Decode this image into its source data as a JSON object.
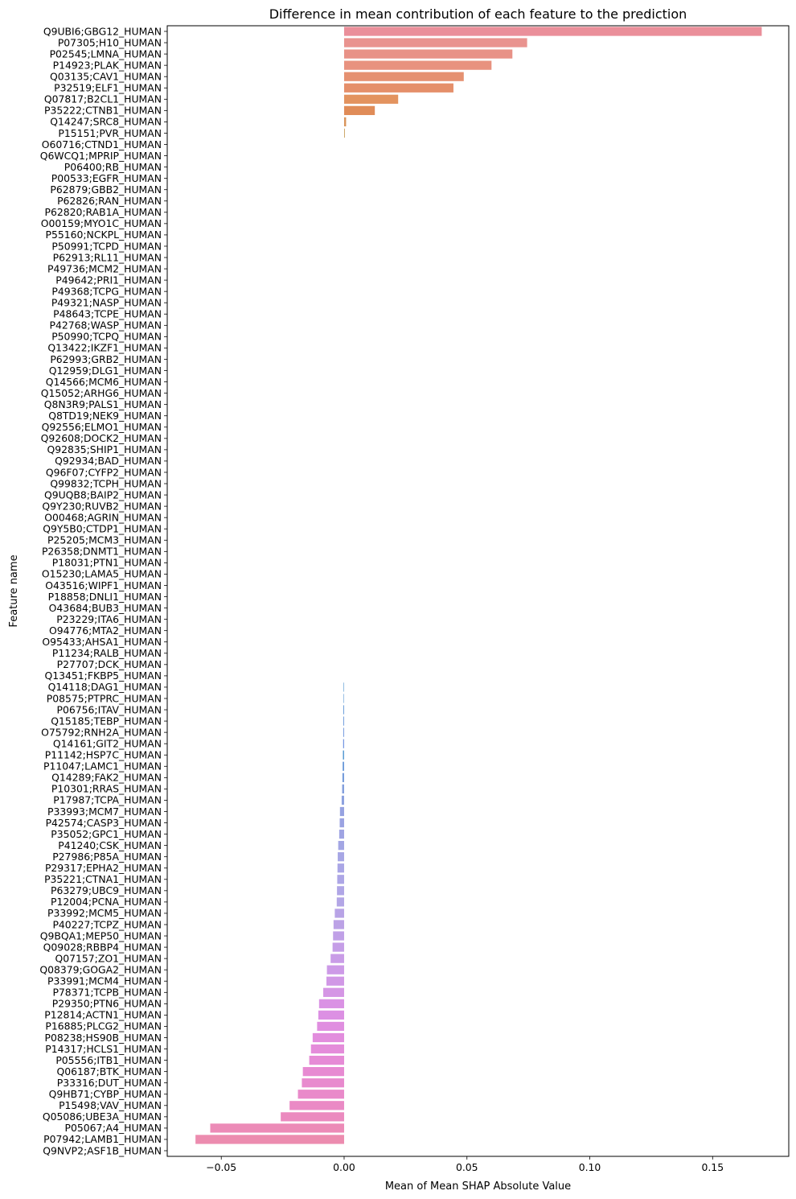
{
  "chart_data": {
    "type": "bar",
    "orientation": "horizontal",
    "title": "Difference in mean contribution of each feature to the prediction",
    "xlabel": "Mean of Mean SHAP Absolute Value",
    "ylabel": "Feature name",
    "xlim": [
      -0.072,
      0.181
    ],
    "xticks": [
      -0.05,
      0.0,
      0.05,
      0.1,
      0.15
    ],
    "xtick_labels": [
      "−0.05",
      "0.00",
      "0.05",
      "0.10",
      "0.15"
    ],
    "grid": false,
    "legend": "none",
    "categories": [
      "Q9UBI6;GBG12_HUMAN",
      "P07305;H10_HUMAN",
      "P02545;LMNA_HUMAN",
      "P14923;PLAK_HUMAN",
      "Q03135;CAV1_HUMAN",
      "P32519;ELF1_HUMAN",
      "Q07817;B2CL1_HUMAN",
      "P35222;CTNB1_HUMAN",
      "Q14247;SRC8_HUMAN",
      "P15151;PVR_HUMAN",
      "O60716;CTND1_HUMAN",
      "Q6WCQ1;MPRIP_HUMAN",
      "P06400;RB_HUMAN",
      "P00533;EGFR_HUMAN",
      "P62879;GBB2_HUMAN",
      "P62826;RAN_HUMAN",
      "P62820;RAB1A_HUMAN",
      "O00159;MYO1C_HUMAN",
      "P55160;NCKPL_HUMAN",
      "P50991;TCPD_HUMAN",
      "P62913;RL11_HUMAN",
      "P49736;MCM2_HUMAN",
      "P49642;PRI1_HUMAN",
      "P49368;TCPG_HUMAN",
      "P49321;NASP_HUMAN",
      "P48643;TCPE_HUMAN",
      "P42768;WASP_HUMAN",
      "P50990;TCPQ_HUMAN",
      "Q13422;IKZF1_HUMAN",
      "P62993;GRB2_HUMAN",
      "Q12959;DLG1_HUMAN",
      "Q14566;MCM6_HUMAN",
      "Q15052;ARHG6_HUMAN",
      "Q8N3R9;PALS1_HUMAN",
      "Q8TD19;NEK9_HUMAN",
      "Q92556;ELMO1_HUMAN",
      "Q92608;DOCK2_HUMAN",
      "Q92835;SHIP1_HUMAN",
      "Q92934;BAD_HUMAN",
      "Q96F07;CYFP2_HUMAN",
      "Q99832;TCPH_HUMAN",
      "Q9UQB8;BAIP2_HUMAN",
      "Q9Y230;RUVB2_HUMAN",
      "O00468;AGRIN_HUMAN",
      "Q9Y5B0;CTDP1_HUMAN",
      "P25205;MCM3_HUMAN",
      "P26358;DNMT1_HUMAN",
      "P18031;PTN1_HUMAN",
      "O15230;LAMA5_HUMAN",
      "O43516;WIPF1_HUMAN",
      "P18858;DNLI1_HUMAN",
      "O43684;BUB3_HUMAN",
      "P23229;ITA6_HUMAN",
      "O94776;MTA2_HUMAN",
      "O95433;AHSA1_HUMAN",
      "P11234;RALB_HUMAN",
      "P27707;DCK_HUMAN",
      "Q13451;FKBP5_HUMAN",
      "Q14118;DAG1_HUMAN",
      "P08575;PTPRC_HUMAN",
      "P06756;ITAV_HUMAN",
      "Q15185;TEBP_HUMAN",
      "O75792;RNH2A_HUMAN",
      "Q14161;GIT2_HUMAN",
      "P11142;HSP7C_HUMAN",
      "P11047;LAMC1_HUMAN",
      "Q14289;FAK2_HUMAN",
      "P10301;RRAS_HUMAN",
      "P17987;TCPA_HUMAN",
      "P33993;MCM7_HUMAN",
      "P42574;CASP3_HUMAN",
      "P35052;GPC1_HUMAN",
      "P41240;CSK_HUMAN",
      "P27986;P85A_HUMAN",
      "P29317;EPHA2_HUMAN",
      "P35221;CTNA1_HUMAN",
      "P63279;UBC9_HUMAN",
      "P12004;PCNA_HUMAN",
      "P33992;MCM5_HUMAN",
      "P40227;TCPZ_HUMAN",
      "Q9BQA1;MEP50_HUMAN",
      "Q09028;RBBP4_HUMAN",
      "Q07157;ZO1_HUMAN",
      "Q08379;GOGA2_HUMAN",
      "P33991;MCM4_HUMAN",
      "P78371;TCPB_HUMAN",
      "P29350;PTN6_HUMAN",
      "P12814;ACTN1_HUMAN",
      "P16885;PLCG2_HUMAN",
      "P08238;HS90B_HUMAN",
      "P14317;HCLS1_HUMAN",
      "P05556;ITB1_HUMAN",
      "Q06187;BTK_HUMAN",
      "P33316;DUT_HUMAN",
      "Q9HB71;CYBP_HUMAN",
      "P15498;VAV_HUMAN",
      "Q05086;UBE3A_HUMAN",
      "P05067;A4_HUMAN",
      "P07942;LAMB1_HUMAN",
      "Q9NVP2;ASF1B_HUMAN"
    ],
    "values": [
      0.17,
      0.0745,
      0.0685,
      0.06,
      0.0487,
      0.0445,
      0.022,
      0.0125,
      0.0008,
      0.0003,
      0,
      0,
      0,
      0,
      0,
      0,
      0,
      0,
      0,
      0,
      0,
      0,
      0,
      0,
      0,
      0,
      0,
      0,
      0,
      0,
      0,
      0,
      0,
      0,
      0,
      0,
      0,
      0,
      0,
      0,
      0,
      0,
      0,
      0,
      0,
      0,
      0,
      0,
      0,
      0,
      0,
      0,
      0,
      0,
      0,
      0,
      0,
      0,
      -0.0002,
      -0.0002,
      -0.0003,
      -0.0003,
      -0.0003,
      -0.0004,
      -0.0005,
      -0.0006,
      -0.0007,
      -0.0008,
      -0.001,
      -0.0017,
      -0.0018,
      -0.002,
      -0.0024,
      -0.0026,
      -0.0027,
      -0.0028,
      -0.0029,
      -0.003,
      -0.0038,
      -0.0043,
      -0.0045,
      -0.0047,
      -0.0055,
      -0.007,
      -0.0072,
      -0.0085,
      -0.0102,
      -0.0105,
      -0.011,
      -0.0128,
      -0.0135,
      -0.0142,
      -0.0168,
      -0.0172,
      -0.0188,
      -0.0222,
      -0.0258,
      -0.0545,
      -0.0605,
      0
    ],
    "bar_colors": [
      "#ea8f9a",
      "#e9938f",
      "#e89287",
      "#e8927f",
      "#e59171",
      "#e58f6a",
      "#e3935f",
      "#e08c58",
      "#d9945b",
      "#c9a05c",
      "#cca659",
      "#c0a95a",
      "#b6ad5a",
      "#aab25b",
      "#9eb75b",
      "#91bc5b",
      "#86bf5b",
      "#7bc25b",
      "#6fc55d",
      "#66c866",
      "#5dca74",
      "#5acc7f",
      "#59cc8a",
      "#5acd95",
      "#5acd9f",
      "#5acca7",
      "#5bcbaf",
      "#5dcab6",
      "#5ec9bc",
      "#60c8c2",
      "#61c7c8",
      "#62c6ce",
      "#63c4d4",
      "#66c2d9",
      "#6bc0de",
      "#6fbde3",
      "#73bae7",
      "#78b7eb",
      "#7eb3ee",
      "#85aff1",
      "#8babf3",
      "#92a7f3",
      "#98a4f3",
      "#9ea1f2",
      "#a49ef1",
      "#aa9bef",
      "#b098ee",
      "#b695ec",
      "#bc92ea",
      "#c28fe8",
      "#c78de6",
      "#cd8be3",
      "#d289e0",
      "#d787dd",
      "#dc86d9",
      "#e085d5",
      "#e384d1",
      "#e785cc",
      "#4f94d0",
      "#5d9ad3",
      "#6399d7",
      "#6998db",
      "#6f97de",
      "#7496e2",
      "#5a9cd4",
      "#6a9ad9",
      "#779ddb",
      "#839fdd",
      "#8da1df",
      "#96a2e1",
      "#9ba3e2",
      "#9fa4e3",
      "#a3a6e4",
      "#a7a6e5",
      "#aaa6e6",
      "#ada6e6",
      "#b0a6e6",
      "#b3a6e6",
      "#b8a3e6",
      "#bca2e6",
      "#c0a0e7",
      "#c59ee7",
      "#c99ce7",
      "#cd9ae7",
      "#d198e6",
      "#d596e5",
      "#da92e4",
      "#dc90e3",
      "#e08ee0",
      "#e28ddd",
      "#e48cda",
      "#e68bd6",
      "#e78ad2",
      "#e88ace",
      "#e98aca",
      "#ea8ac5",
      "#eb8abf",
      "#ec8bb7",
      "#ec8caf",
      "#ea8fa6"
    ]
  }
}
